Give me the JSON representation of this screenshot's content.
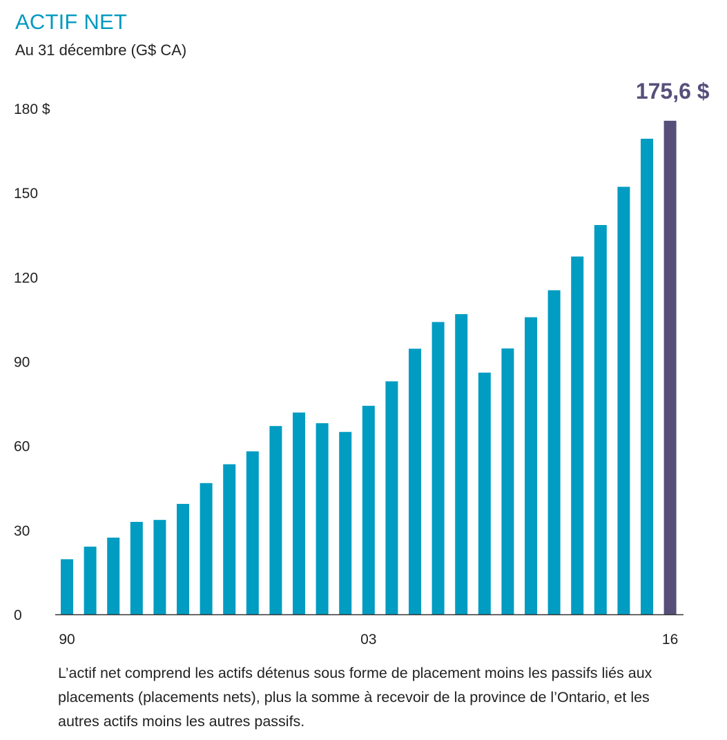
{
  "title": "ACTIF NET",
  "subtitle": "Au 31 décembre (G$ CA)",
  "caption": "L’actif net comprend les actifs détenus sous forme de placement moins les passifs liés aux placements (placements nets), plus la somme à recevoir de la province de l’Ontario, et les autres actifs moins les autres passifs.",
  "chart_data": {
    "type": "bar",
    "title": "ACTIF NET",
    "subtitle": "Au 31 décembre (G$ CA)",
    "categories": [
      "90",
      "91",
      "92",
      "93",
      "94",
      "95",
      "96",
      "97",
      "98",
      "99",
      "00",
      "01",
      "02",
      "03",
      "04",
      "05",
      "06",
      "07",
      "08",
      "09",
      "10",
      "11",
      "12",
      "13",
      "14",
      "15",
      "16"
    ],
    "x_tick_labels": [
      "90",
      "03",
      "16"
    ],
    "values": [
      19.6,
      24.1,
      27.3,
      32.9,
      33.6,
      39.3,
      46.7,
      53.4,
      58.0,
      67.0,
      71.8,
      68.0,
      64.9,
      74.2,
      82.9,
      94.5,
      104.0,
      106.8,
      86.0,
      94.6,
      105.7,
      115.3,
      127.3,
      138.5,
      152.1,
      169.2,
      175.6
    ],
    "ylim": [
      0,
      180
    ],
    "yticks": [
      0,
      30,
      60,
      90,
      120,
      150,
      180
    ],
    "ytick_labels": [
      "0",
      "30",
      "60",
      "90",
      "120",
      "150",
      "180 $"
    ],
    "xlabel": "",
    "ylabel": "",
    "highlight_label": "175,6 $",
    "grid": false,
    "colors": {
      "bar": "#009cc2",
      "highlight": "#574f7a",
      "axis": "#333333"
    }
  }
}
